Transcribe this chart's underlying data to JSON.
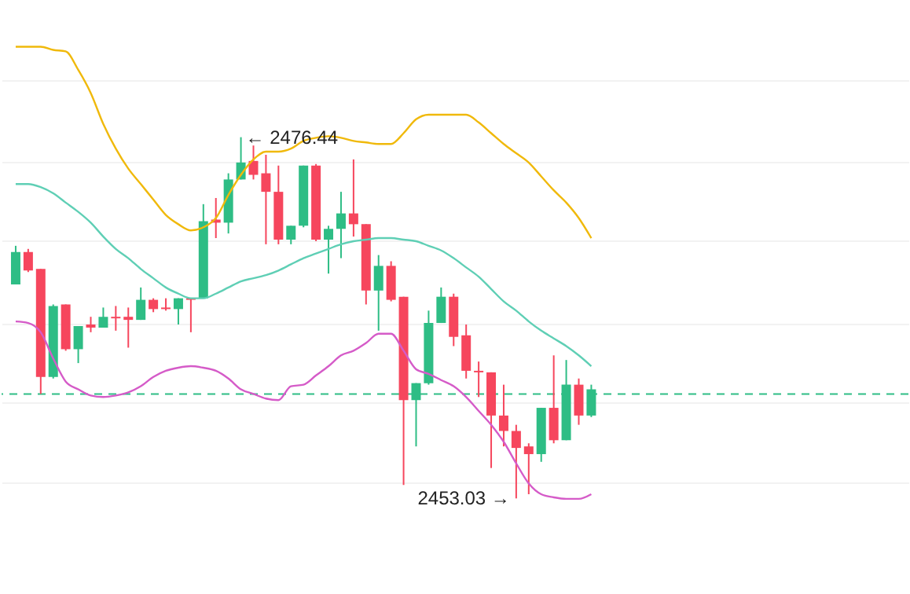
{
  "chart_data": {
    "type": "candlestick",
    "categories": [
      null,
      null,
      null,
      null,
      null,
      null,
      null,
      null,
      null,
      null,
      null,
      null,
      null,
      null,
      null,
      null,
      null,
      null,
      null,
      null,
      null,
      null,
      null,
      null,
      null,
      null,
      null,
      null,
      null,
      null,
      null,
      null,
      null,
      null,
      null,
      null,
      null,
      null,
      null,
      null,
      null,
      null,
      null,
      null,
      null,
      null,
      null
    ],
    "ohlc": [
      [
        2466.9,
        2469.4,
        2466.9,
        2469.0
      ],
      [
        2469.0,
        2469.2,
        2467.7,
        2467.8
      ],
      [
        2467.9,
        2467.9,
        2459.8,
        2460.9
      ],
      [
        2460.9,
        2465.6,
        2460.8,
        2465.5
      ],
      [
        2465.6,
        2465.6,
        2462.6,
        2462.7
      ],
      [
        2462.7,
        2464.2,
        2461.8,
        2464.2
      ],
      [
        2464.3,
        2464.8,
        2463.8,
        2464.1
      ],
      [
        2464.1,
        2465.4,
        2464.1,
        2464.8
      ],
      [
        2464.8,
        2465.5,
        2463.9,
        2464.7
      ],
      [
        2464.8,
        2465.4,
        2462.8,
        2464.6
      ],
      [
        2464.6,
        2466.7,
        2464.6,
        2465.9
      ],
      [
        2465.9,
        2466.0,
        2465.1,
        2465.3
      ],
      [
        2465.4,
        2466.0,
        2465.2,
        2465.3
      ],
      [
        2465.3,
        2466.0,
        2464.3,
        2466.0
      ],
      [
        2466.0,
        2466.0,
        2463.8,
        2465.9
      ],
      [
        2466.0,
        2472.1,
        2466.0,
        2471.0
      ],
      [
        2471.1,
        2472.5,
        2469.9,
        2470.9
      ],
      [
        2470.9,
        2474.1,
        2470.2,
        2473.7
      ],
      [
        2473.7,
        2476.44,
        2473.7,
        2474.8
      ],
      [
        2474.9,
        2475.9,
        2473.7,
        2474.0
      ],
      [
        2474.1,
        2475.3,
        2469.5,
        2472.9
      ],
      [
        2472.9,
        2474.6,
        2469.5,
        2469.8
      ],
      [
        2469.8,
        2470.7,
        2469.5,
        2470.7
      ],
      [
        2470.7,
        2474.6,
        2470.6,
        2474.6
      ],
      [
        2474.6,
        2474.7,
        2469.7,
        2469.8
      ],
      [
        2469.8,
        2470.7,
        2467.6,
        2470.5
      ],
      [
        2470.5,
        2472.9,
        2468.6,
        2471.5
      ],
      [
        2471.5,
        2475.0,
        2470.0,
        2470.8
      ],
      [
        2470.8,
        2470.8,
        2465.6,
        2466.5
      ],
      [
        2466.5,
        2468.8,
        2463.9,
        2468.1
      ],
      [
        2468.1,
        2468.4,
        2465.8,
        2465.9
      ],
      [
        2466.1,
        2466.1,
        2453.9,
        2459.4
      ],
      [
        2459.4,
        2460.5,
        2456.4,
        2460.5
      ],
      [
        2460.5,
        2465.2,
        2460.4,
        2464.4
      ],
      [
        2464.4,
        2466.7,
        2464.4,
        2466.1
      ],
      [
        2466.1,
        2466.3,
        2462.9,
        2463.5
      ],
      [
        2463.6,
        2464.3,
        2460.8,
        2461.3
      ],
      [
        2461.3,
        2461.9,
        2459.6,
        2461.2
      ],
      [
        2461.2,
        2461.2,
        2455.0,
        2458.4
      ],
      [
        2458.4,
        2460.4,
        2456.4,
        2457.4
      ],
      [
        2457.4,
        2457.8,
        2453.03,
        2456.3
      ],
      [
        2456.4,
        2456.6,
        2453.3,
        2455.9
      ],
      [
        2455.9,
        2458.9,
        2455.4,
        2458.9
      ],
      [
        2458.9,
        2462.3,
        2456.6,
        2456.8
      ],
      [
        2456.8,
        2462.0,
        2456.8,
        2460.4
      ],
      [
        2460.4,
        2460.8,
        2457.8,
        2458.4
      ],
      [
        2458.4,
        2460.4,
        2458.3,
        2460.1
      ]
    ],
    "colors": [
      "#2ebd85",
      "#f6465d",
      "#f6465d",
      "#2ebd85",
      "#f6465d",
      "#2ebd85",
      "#f6465d",
      "#2ebd85",
      "#f6465d",
      "#f6465d",
      "#2ebd85",
      "#f6465d",
      "#f6465d",
      "#2ebd85",
      "#f6465d",
      "#2ebd85",
      "#f6465d",
      "#2ebd85",
      "#2ebd85",
      "#f6465d",
      "#f6465d",
      "#f6465d",
      "#2ebd85",
      "#2ebd85",
      "#f6465d",
      "#2ebd85",
      "#2ebd85",
      "#f6465d",
      "#f6465d",
      "#2ebd85",
      "#f6465d",
      "#f6465d",
      "#2ebd85",
      "#2ebd85",
      "#2ebd85",
      "#f6465d",
      "#f6465d",
      "#f6465d",
      "#f6465d",
      "#f6465d",
      "#f6465d",
      "#f6465d",
      "#2ebd85",
      "#f6465d",
      "#2ebd85",
      "#f6465d",
      "#2ebd85"
    ],
    "series": [
      {
        "type": "line",
        "color": "#f0b90b",
        "values": [
          2482.3,
          2482.3,
          2482.3,
          2482.1,
          2482.0,
          2480.8,
          2479.3,
          2477.3,
          2475.7,
          2474.4,
          2473.4,
          2472.4,
          2471.4,
          2470.8,
          2470.4,
          2470.6,
          2471.2,
          2472.7,
          2474.0,
          2475.0,
          2475.5,
          2475.5,
          2475.7,
          2476.2,
          2476.4,
          2476.5,
          2476.4,
          2476.2,
          2476.1,
          2476.0,
          2476.0,
          2476.7,
          2477.6,
          2477.9,
          2477.9,
          2477.9,
          2477.9,
          2477.4,
          2476.7,
          2476.0,
          2475.4,
          2474.8,
          2473.9,
          2473.0,
          2472.2,
          2471.2,
          2469.9
        ]
      },
      {
        "type": "line",
        "color": "#5fcfb5",
        "values": [
          2473.4,
          2473.4,
          2473.2,
          2472.8,
          2472.2,
          2471.6,
          2470.9,
          2470.0,
          2469.2,
          2468.6,
          2467.9,
          2467.3,
          2466.7,
          2466.3,
          2466.0,
          2466.0,
          2466.3,
          2466.7,
          2467.1,
          2467.3,
          2467.5,
          2467.8,
          2468.2,
          2468.6,
          2468.9,
          2469.2,
          2469.5,
          2469.7,
          2469.8,
          2469.9,
          2469.9,
          2469.8,
          2469.7,
          2469.4,
          2469.1,
          2468.6,
          2468.0,
          2467.4,
          2466.6,
          2465.8,
          2465.2,
          2464.5,
          2463.9,
          2463.4,
          2462.9,
          2462.3,
          2461.6
        ]
      },
      {
        "type": "line",
        "color": "#d55bc8",
        "values": [
          2464.5,
          2464.4,
          2463.8,
          2462.1,
          2460.6,
          2460.1,
          2459.7,
          2459.6,
          2459.7,
          2459.9,
          2460.3,
          2460.9,
          2461.3,
          2461.5,
          2461.6,
          2461.5,
          2461.3,
          2460.8,
          2460.1,
          2459.8,
          2459.5,
          2459.4,
          2460.3,
          2460.4,
          2461.0,
          2461.6,
          2462.3,
          2462.6,
          2463.1,
          2463.7,
          2463.7,
          2462.6,
          2461.4,
          2461.1,
          2460.7,
          2460.3,
          2459.6,
          2458.7,
          2457.8,
          2456.7,
          2455.3,
          2454.0,
          2453.3,
          2453.1,
          2453.0,
          2453.0,
          2453.3
        ]
      }
    ],
    "yticks": [
      {
        "value": 2480.1,
        "label": null
      },
      {
        "value": 2474.8,
        "label": null
      },
      {
        "value": 2469.7,
        "label": null
      },
      {
        "value": 2464.4,
        "label": null
      },
      {
        "value": 2459.3,
        "label": null
      },
      {
        "value": 2454.1,
        "label": null
      }
    ],
    "grid": "y",
    "tick_labels": false,
    "ref_lines": [
      {
        "axis": "y",
        "value": 2459.8,
        "color": "#2ebd85",
        "line_style": "dashed"
      }
    ],
    "annotations": [
      "← 2476.44",
      "2453.03 →"
    ]
  }
}
